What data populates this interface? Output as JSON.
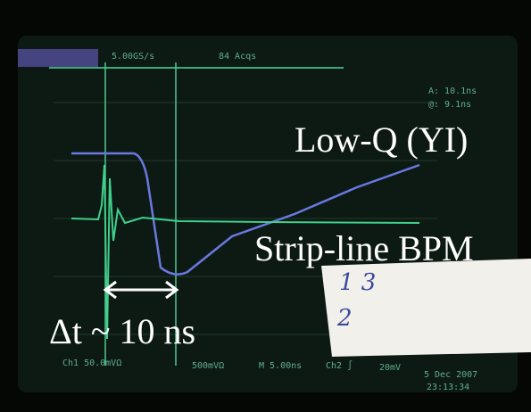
{
  "annotations": {
    "low_q": "Low-Q (YI)",
    "strip_line": "Strip-line BPM",
    "delta_t": "Δt ~ 10 ns"
  },
  "scope": {
    "sample_rate": "5.00GS/s",
    "acquisitions": "84 Acqs",
    "cursor_a": "A: 10.1ns",
    "cursor_b": "@: 9.1ns",
    "ch1_scale": "Ch1 50.0mVΩ",
    "ch2_scale": "500mVΩ",
    "timebase": "M 5.00ns",
    "trigger": "Ch2 ∫",
    "trigger_level": "20mV",
    "date": "5 Dec 2007",
    "time": "23:13:34"
  },
  "paper_note": {
    "line1": "1 3",
    "line2": "2"
  }
}
